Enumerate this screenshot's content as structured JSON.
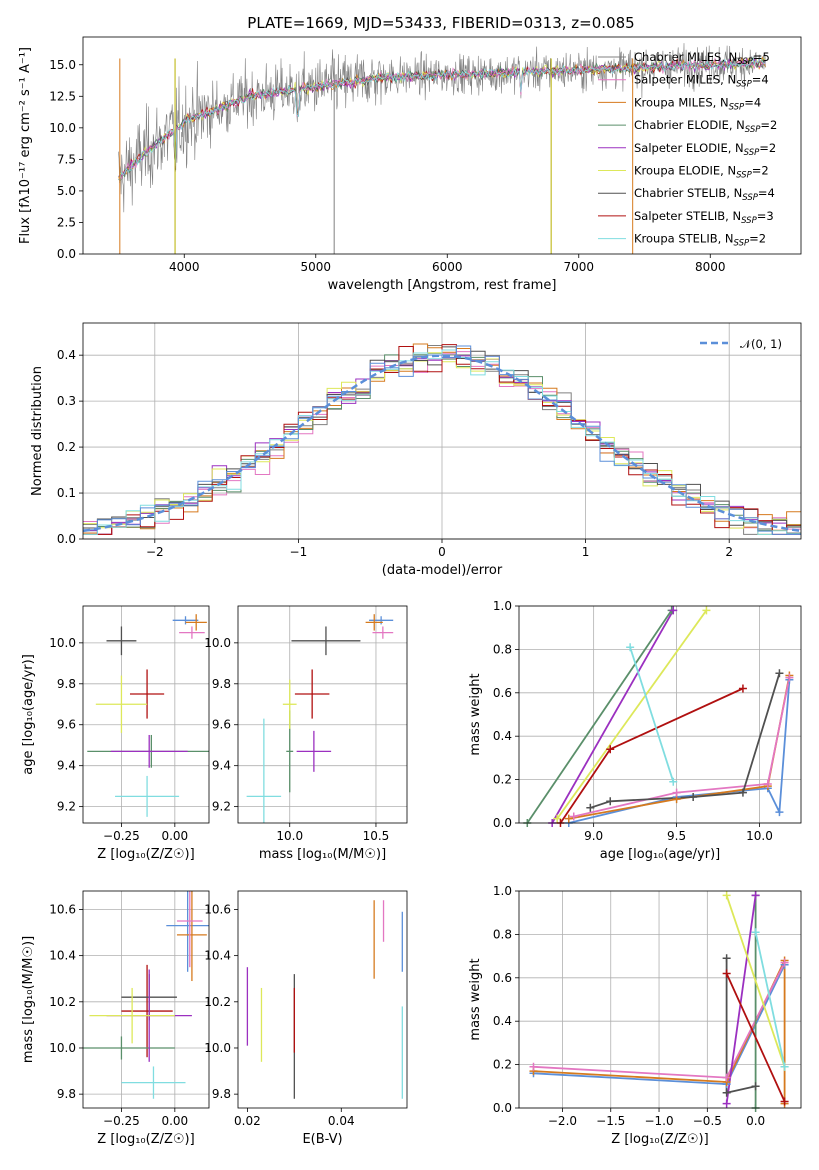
{
  "figure": {
    "title": "PLATE=1669, MJD=53433, FIBERID=0313, z=0.085"
  },
  "models": [
    {
      "name": "Chabrier MILES",
      "nssp": "5",
      "color": "#808080"
    },
    {
      "name": "Salpeter MILES",
      "nssp": "4",
      "color": "#e377c2"
    },
    {
      "name": "Kroupa MILES",
      "nssp": "4",
      "color": "#d67a1e"
    },
    {
      "name": "Chabrier ELODIE",
      "nssp": "2",
      "color": "#5a8f6a"
    },
    {
      "name": "Salpeter ELODIE",
      "nssp": "2",
      "color": "#9b30c0"
    },
    {
      "name": "Kroupa ELODIE",
      "nssp": "2",
      "color": "#dde85a"
    },
    {
      "name": "Chabrier STELIB",
      "nssp": "4",
      "color": "#505050"
    },
    {
      "name": "Salpeter STELIB",
      "nssp": "3",
      "color": "#b01010"
    },
    {
      "name": "Kroupa STELIB",
      "nssp": "2",
      "color": "#80dde0"
    }
  ],
  "chart_data": [
    {
      "id": "spectrum",
      "type": "line",
      "title": "PLATE=1669, MJD=53433, FIBERID=0313, z=0.085",
      "xlabel": "wavelength [Angstrom, rest frame]",
      "ylabel": "Flux [fλ10⁻¹⁷ erg cm⁻² s⁻¹ A⁻¹]",
      "xlim": [
        3230,
        8690
      ],
      "ylim": [
        0,
        17.2
      ],
      "xticks": [
        4000,
        5000,
        6000,
        7000,
        8000
      ],
      "yticks": [
        0.0,
        2.5,
        5.0,
        7.5,
        10.0,
        12.5,
        15.0
      ],
      "legend_position": "upper-right",
      "spikes": [
        {
          "x": 3510,
          "color": "#d67a1e"
        },
        {
          "x": 3930,
          "color": "#b8b000"
        },
        {
          "x": 5140,
          "color": "#808080"
        },
        {
          "x": 6790,
          "color": "#b8b000"
        },
        {
          "x": 7410,
          "color": "#d67a1e"
        }
      ]
    },
    {
      "id": "residuals",
      "type": "histogram",
      "xlabel": "(data-model)/error",
      "ylabel": "Normed distribution",
      "xlim": [
        -2.5,
        2.5
      ],
      "ylim": [
        0,
        0.47
      ],
      "xticks": [
        -2,
        -1,
        0,
        1,
        2
      ],
      "yticks": [
        0.0,
        0.1,
        0.2,
        0.3,
        0.4
      ],
      "legend": {
        "label": "𝒩(0, 1)",
        "color": "#5b8fd9",
        "position": "upper-right"
      },
      "bin_width": 0.1,
      "x_start": -2.5
    },
    {
      "id": "age_vs_Z",
      "type": "scatter_errorbar",
      "xlabel": "Z [log₁₀(Z/Z☉)]",
      "ylabel": "age  [log₁₀(age/yr)]",
      "xlim": [
        -0.43,
        0.16
      ],
      "ylim": [
        9.12,
        10.18
      ],
      "xticks": [
        -0.25,
        0.0
      ],
      "yticks": [
        9.2,
        9.4,
        9.6,
        9.8,
        10.0
      ],
      "points": [
        {
          "x": -0.13,
          "y": 9.75,
          "xerr": 0.08,
          "yerr": 0.12,
          "color": "#b01010"
        },
        {
          "x": -0.25,
          "y": 10.01,
          "xerr": 0.07,
          "yerr": 0.07,
          "color": "#505050"
        },
        {
          "x": -0.11,
          "y": 9.47,
          "xerr": 0.3,
          "yerr": 0.08,
          "color": "#5a8f6a"
        },
        {
          "x": -0.12,
          "y": 9.47,
          "xerr": 0.18,
          "yerr": 0.08,
          "color": "#9b30c0"
        },
        {
          "x": -0.25,
          "y": 9.7,
          "xerr": 0.12,
          "yerr": 0.14,
          "color": "#dde85a"
        },
        {
          "x": -0.13,
          "y": 9.25,
          "xerr": 0.15,
          "yerr": 0.1,
          "color": "#80dde0"
        },
        {
          "x": 0.05,
          "y": 10.11,
          "xerr": 0.06,
          "yerr": 0.02,
          "color": "#5b8fd9"
        },
        {
          "x": 0.1,
          "y": 10.1,
          "xerr": 0.05,
          "yerr": 0.04,
          "color": "#d67a1e"
        },
        {
          "x": 0.08,
          "y": 10.05,
          "xerr": 0.06,
          "yerr": 0.03,
          "color": "#e377c2"
        }
      ]
    },
    {
      "id": "age_vs_mass",
      "type": "scatter_errorbar",
      "xlabel": "mass [log₁₀(M/M☉)]",
      "ylabel": "",
      "xlim": [
        9.7,
        10.68
      ],
      "ylim": [
        9.12,
        10.18
      ],
      "xticks": [
        10.0,
        10.5
      ],
      "yticks": [
        9.2,
        9.4,
        9.6,
        9.8,
        10.0
      ],
      "points": [
        {
          "x": 10.13,
          "y": 9.75,
          "xerr": 0.1,
          "yerr": 0.12,
          "color": "#b01010"
        },
        {
          "x": 10.21,
          "y": 10.01,
          "xerr": 0.2,
          "yerr": 0.07,
          "color": "#505050"
        },
        {
          "x": 10.0,
          "y": 9.47,
          "xerr": 0.02,
          "yerr": 0.2,
          "color": "#5a8f6a"
        },
        {
          "x": 10.14,
          "y": 9.47,
          "xerr": 0.1,
          "yerr": 0.1,
          "color": "#9b30c0"
        },
        {
          "x": 10.0,
          "y": 9.7,
          "xerr": 0.04,
          "yerr": 0.12,
          "color": "#dde85a"
        },
        {
          "x": 9.85,
          "y": 9.25,
          "xerr": 0.1,
          "yerr": 0.38,
          "color": "#80dde0"
        },
        {
          "x": 10.53,
          "y": 10.11,
          "xerr": 0.07,
          "yerr": 0.02,
          "color": "#5b8fd9"
        },
        {
          "x": 10.49,
          "y": 10.1,
          "xerr": 0.05,
          "yerr": 0.04,
          "color": "#d67a1e"
        },
        {
          "x": 10.54,
          "y": 10.05,
          "xerr": 0.06,
          "yerr": 0.03,
          "color": "#e377c2"
        }
      ]
    },
    {
      "id": "mass_weight_vs_age",
      "type": "line",
      "xlabel": "age  [log₁₀(age/yr)]",
      "ylabel": "mass weight",
      "xlim": [
        8.55,
        10.25
      ],
      "ylim": [
        0,
        1.0
      ],
      "xticks": [
        9.0,
        9.5,
        10.0
      ],
      "yticks": [
        0.0,
        0.2,
        0.4,
        0.6,
        0.8,
        1.0
      ],
      "series": [
        {
          "color": "#5b8fd9",
          "points": [
            [
              8.85,
              0.0
            ],
            [
              9.5,
              0.12
            ],
            [
              10.05,
              0.16
            ],
            [
              10.12,
              0.05
            ],
            [
              10.18,
              0.66
            ]
          ]
        },
        {
          "color": "#d67a1e",
          "points": [
            [
              8.85,
              0.02
            ],
            [
              9.5,
              0.11
            ],
            [
              10.05,
              0.17
            ],
            [
              10.18,
              0.68
            ]
          ]
        },
        {
          "color": "#e377c2",
          "points": [
            [
              8.88,
              0.03
            ],
            [
              9.5,
              0.14
            ],
            [
              10.05,
              0.18
            ],
            [
              10.18,
              0.67
            ]
          ]
        },
        {
          "color": "#5a8f6a",
          "points": [
            [
              8.6,
              0.0
            ],
            [
              9.47,
              0.98
            ]
          ]
        },
        {
          "color": "#9b30c0",
          "points": [
            [
              8.75,
              0.0
            ],
            [
              9.48,
              0.98
            ]
          ]
        },
        {
          "color": "#dde85a",
          "points": [
            [
              8.78,
              0.02
            ],
            [
              9.68,
              0.98
            ]
          ]
        },
        {
          "color": "#505050",
          "points": [
            [
              8.98,
              0.07
            ],
            [
              9.1,
              0.1
            ],
            [
              9.6,
              0.12
            ],
            [
              9.9,
              0.14
            ],
            [
              10.12,
              0.69
            ]
          ]
        },
        {
          "color": "#b01010",
          "points": [
            [
              8.8,
              0.0
            ],
            [
              9.1,
              0.34
            ],
            [
              9.9,
              0.62
            ]
          ]
        },
        {
          "color": "#80dde0",
          "points": [
            [
              9.22,
              0.81
            ],
            [
              9.48,
              0.19
            ]
          ]
        }
      ]
    },
    {
      "id": "mass_vs_Z",
      "type": "scatter_errorbar",
      "xlabel": "Z [log₁₀(Z/Z☉)]",
      "ylabel": "mass [log₁₀(M/M☉)]",
      "xlim": [
        -0.43,
        0.16
      ],
      "ylim": [
        9.74,
        10.68
      ],
      "xticks": [
        -0.25,
        0.0
      ],
      "yticks": [
        9.8,
        10.0,
        10.2,
        10.4,
        10.6
      ],
      "points": [
        {
          "x": -0.13,
          "y": 10.16,
          "xerr": 0.12,
          "yerr": 0.2,
          "color": "#b01010"
        },
        {
          "x": -0.12,
          "y": 10.22,
          "xerr": 0.13,
          "yerr": 0.1,
          "color": "#505050"
        },
        {
          "x": -0.25,
          "y": 10.0,
          "xerr": 0.25,
          "yerr": 0.05,
          "color": "#5a8f6a"
        },
        {
          "x": -0.12,
          "y": 10.14,
          "xerr": 0.2,
          "yerr": 0.2,
          "color": "#9b30c0"
        },
        {
          "x": -0.2,
          "y": 10.14,
          "xerr": 0.2,
          "yerr": 0.12,
          "color": "#dde85a"
        },
        {
          "x": -0.1,
          "y": 9.85,
          "xerr": 0.15,
          "yerr": 0.07,
          "color": "#80dde0"
        },
        {
          "x": 0.06,
          "y": 10.53,
          "xerr": 0.1,
          "yerr": 0.2,
          "color": "#5b8fd9"
        },
        {
          "x": 0.08,
          "y": 10.49,
          "xerr": 0.07,
          "yerr": 0.2,
          "color": "#d67a1e"
        },
        {
          "x": 0.07,
          "y": 10.55,
          "xerr": 0.06,
          "yerr": 0.2,
          "color": "#e377c2"
        }
      ]
    },
    {
      "id": "mass_vs_ebv",
      "type": "scatter_errorbar",
      "xlabel": "E(B-V)",
      "ylabel": "",
      "xlim": [
        0.018,
        0.054
      ],
      "ylim": [
        9.74,
        10.68
      ],
      "xticks": [
        0.02,
        0.04
      ],
      "yticks": [
        9.8,
        10.0,
        10.2,
        10.4,
        10.6
      ],
      "points": [
        {
          "x": 0.02,
          "y": 10.18,
          "xerr": 0,
          "yerr": 0.17,
          "color": "#9b30c0"
        },
        {
          "x": 0.023,
          "y": 10.1,
          "xerr": 0,
          "yerr": 0.16,
          "color": "#dde85a"
        },
        {
          "x": 0.03,
          "y": 10.05,
          "xerr": 0,
          "yerr": 0.27,
          "color": "#505050"
        },
        {
          "x": 0.03,
          "y": 10.12,
          "xerr": 0,
          "yerr": 0.14,
          "color": "#b01010"
        },
        {
          "x": 0.047,
          "y": 10.47,
          "xerr": 0,
          "yerr": 0.17,
          "color": "#d67a1e"
        },
        {
          "x": 0.049,
          "y": 10.55,
          "xerr": 0,
          "yerr": 0.09,
          "color": "#e377c2"
        },
        {
          "x": 0.053,
          "y": 10.46,
          "xerr": 0,
          "yerr": 0.13,
          "color": "#5b8fd9"
        },
        {
          "x": 0.053,
          "y": 9.98,
          "xerr": 0,
          "yerr": 0.2,
          "color": "#80dde0"
        }
      ]
    },
    {
      "id": "mass_weight_vs_Z",
      "type": "line",
      "xlabel": "Z [log₁₀(Z/Z☉)]",
      "ylabel": "mass weight",
      "xlim": [
        -2.45,
        0.47
      ],
      "ylim": [
        0,
        1.0
      ],
      "xticks": [
        -2.0,
        -1.5,
        -1.0,
        -0.5,
        0.0
      ],
      "yticks": [
        0.0,
        0.2,
        0.4,
        0.6,
        0.8,
        1.0
      ],
      "series": [
        {
          "color": "#5b8fd9",
          "points": [
            [
              -2.3,
              0.16
            ],
            [
              -0.3,
              0.11
            ],
            [
              0.3,
              0.66
            ]
          ]
        },
        {
          "color": "#d67a1e",
          "points": [
            [
              -2.3,
              0.17
            ],
            [
              -0.3,
              0.12
            ],
            [
              0.3,
              0.68
            ],
            [
              0.3,
              0.02
            ]
          ]
        },
        {
          "color": "#e377c2",
          "points": [
            [
              -2.3,
              0.19
            ],
            [
              -0.3,
              0.14
            ],
            [
              0.3,
              0.67
            ]
          ]
        },
        {
          "color": "#5a8f6a",
          "points": [
            [
              0.0,
              0.98
            ],
            [
              0.0,
              0.0
            ]
          ]
        },
        {
          "color": "#9b30c0",
          "points": [
            [
              -0.3,
              0.02
            ],
            [
              0.0,
              0.98
            ]
          ]
        },
        {
          "color": "#dde85a",
          "points": [
            [
              -0.3,
              0.98
            ],
            [
              0.3,
              0.19
            ]
          ]
        },
        {
          "color": "#505050",
          "points": [
            [
              -0.3,
              0.69
            ],
            [
              -0.3,
              0.07
            ],
            [
              0.0,
              0.1
            ]
          ]
        },
        {
          "color": "#b01010",
          "points": [
            [
              -0.3,
              0.62
            ],
            [
              0.3,
              0.03
            ]
          ]
        },
        {
          "color": "#80dde0",
          "points": [
            [
              0.0,
              0.81
            ],
            [
              0.3,
              0.19
            ]
          ]
        }
      ]
    }
  ]
}
